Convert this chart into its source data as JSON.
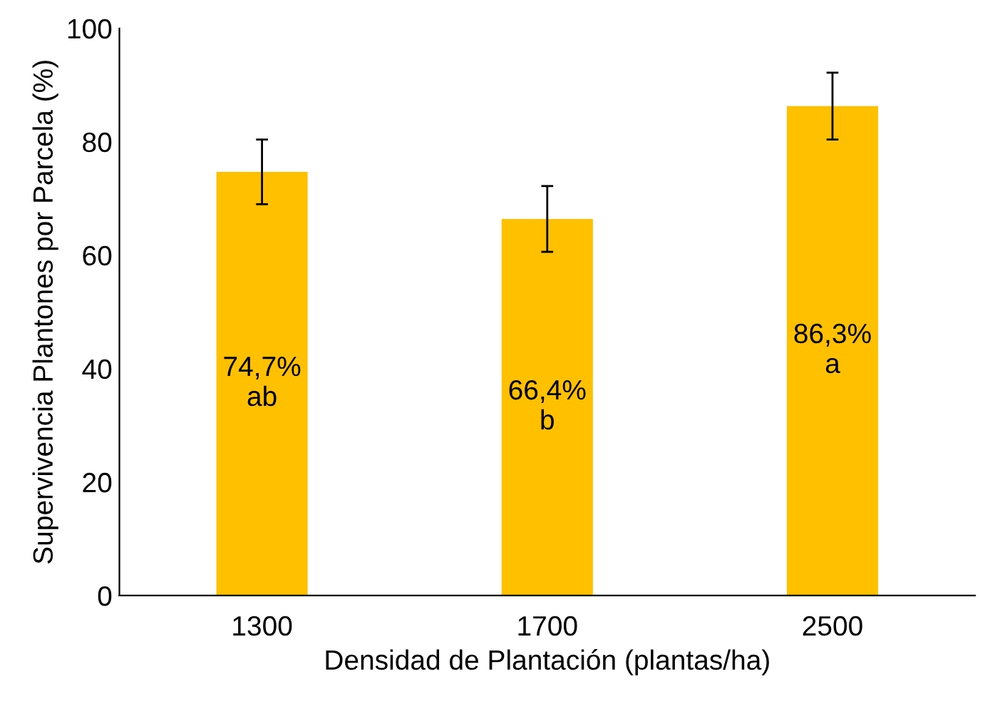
{
  "chart_data": {
    "type": "bar",
    "xlabel": "Densidad de Plantación (plantas/ha)",
    "ylabel": "Supervivencia Plantones por Parcela (%)",
    "categories": [
      "1300",
      "1700",
      "2500"
    ],
    "values": [
      74.7,
      66.4,
      86.3
    ],
    "errors": [
      5.7,
      5.8,
      5.9
    ],
    "value_labels": [
      "74,7%\nab",
      "66,4%\nb",
      "86,3%\na"
    ],
    "color": "#ffc000",
    "ylim": [
      0,
      100
    ],
    "yticks": [
      0,
      20,
      40,
      60,
      80,
      100
    ],
    "grid": false
  }
}
